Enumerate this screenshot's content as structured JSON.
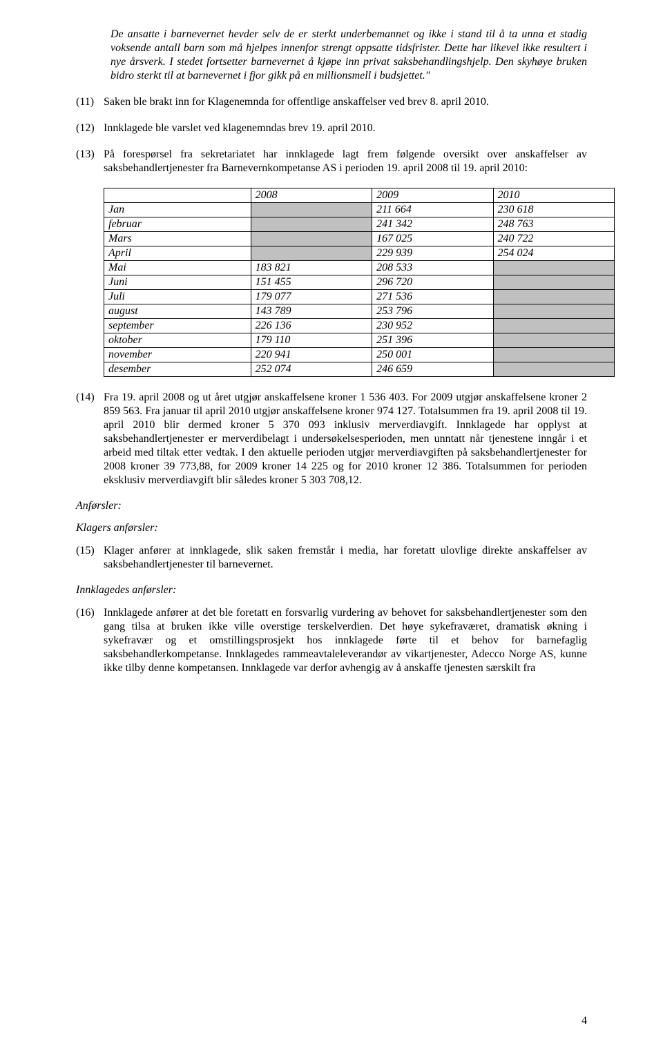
{
  "quote": "De ansatte i barnevernet hevder selv de er sterkt underbemannet og ikke i stand til å ta unna et stadig voksende antall barn som må hjelpes innenfor strengt oppsatte tidsfrister. Dette har likevel ikke resultert i nye årsverk. I stedet fortsetter barnevernet å kjøpe inn privat saksbehandlingshjelp. Den skyhøye bruken bidro sterkt til at barnevernet i fjor gikk  på en millionsmell i budsjettet.\"",
  "p11": {
    "num": "(11)",
    "text": "Saken ble brakt inn for Klagenemnda for offentlige anskaffelser ved brev 8. april 2010."
  },
  "p12": {
    "num": "(12)",
    "text": "Innklagede ble varslet ved klagenemndas brev 19. april 2010."
  },
  "p13": {
    "num": "(13)",
    "text": "På forespørsel fra sekretariatet har innklagede lagt frem følgende oversikt over anskaffelser av saksbehandlertjenester fra Barnevernkompetanse AS i perioden 19. april 2008 til 19. april 2010:"
  },
  "table": {
    "headers": [
      "",
      "2008",
      "2009",
      "2010"
    ],
    "rows": [
      {
        "label": "Jan",
        "y2008": "",
        "y2009": "211 664",
        "y2010": "230 618",
        "shade2008": true
      },
      {
        "label": "februar",
        "y2008": "",
        "y2009": "241 342",
        "y2010": "248 763",
        "shade2008": true
      },
      {
        "label": "Mars",
        "y2008": "",
        "y2009": "167 025",
        "y2010": "240 722",
        "shade2008": true
      },
      {
        "label": "April",
        "y2008": "",
        "y2009": "229 939",
        "y2010": "254 024",
        "shade2008": true
      },
      {
        "label": "Mai",
        "y2008": "183 821",
        "y2009": "208 533",
        "y2010": "",
        "shade2010": true
      },
      {
        "label": " Juni",
        "y2008": "151 455",
        "y2009": "296 720",
        "y2010": "",
        "shade2010": true
      },
      {
        "label": "Juli",
        "y2008": "179 077",
        "y2009": "271 536",
        "y2010": "",
        "shade2010": true
      },
      {
        "label": "august",
        "y2008": "143 789",
        "y2009": "253 796",
        "y2010": "",
        "shade2010": true
      },
      {
        "label": "september",
        "y2008": "226 136",
        "y2009": "230 952",
        "y2010": "",
        "shade2010": true
      },
      {
        "label": "oktober",
        "y2008": "179 110",
        "y2009": "251 396",
        "y2010": "",
        "shade2010": true
      },
      {
        "label": "november",
        "y2008": "220 941",
        "y2009": "250 001",
        "y2010": "",
        "shade2010": true
      },
      {
        "label": "desember",
        "y2008": "252 074",
        "y2009": "246 659",
        "y2010": "",
        "shade2010": true
      }
    ]
  },
  "p14": {
    "num": "(14)",
    "text": "Fra 19. april 2008 og ut året utgjør anskaffelsene kroner 1 536 403. For 2009 utgjør anskaffelsene kroner 2 859 563. Fra januar til april 2010 utgjør anskaffelsene kroner 974 127. Totalsummen fra 19. april 2008 til 19. april 2010 blir dermed kroner 5 370 093 inklusiv merverdiavgift. Innklagede har opplyst at saksbehandlertjenester er merverdibelagt i undersøkelsesperioden, men unntatt når tjenestene inngår i et arbeid med tiltak etter vedtak. I den aktuelle perioden utgjør merverdiavgiften på saksbehandlertjenester for 2008 kroner 39 773,88, for 2009 kroner 14 225 og for 2010 kroner 12 386. Totalsummen for perioden eksklusiv merverdiavgift blir således kroner 5 303 708,12."
  },
  "anforsler_label": "Anførsler:",
  "klagers_label": "Klagers anførsler:",
  "p15": {
    "num": "(15)",
    "text": "Klager anfører at innklagede, slik saken fremstår i media, har foretatt ulovlige direkte anskaffelser av saksbehandlertjenester til barnevernet."
  },
  "innklagedes_label": "Innklagedes anførsler:",
  "p16": {
    "num": "(16)",
    "text": "Innklagede anfører at det ble foretatt en forsvarlig vurdering av behovet for saksbehandlertjenester som den gang tilsa at bruken ikke ville overstige terskelverdien. Det høye sykefraværet, dramatisk økning i sykefravær og et omstillingsprosjekt hos innklagede førte til et behov for barnefaglig saksbehandlerkompetanse. Innklagedes rammeavtaleleverandør av vikartjenester, Adecco Norge AS, kunne ikke tilby denne kompetansen. Innklagede var derfor avhengig av å anskaffe tjenesten særskilt fra"
  },
  "page_number": "4"
}
